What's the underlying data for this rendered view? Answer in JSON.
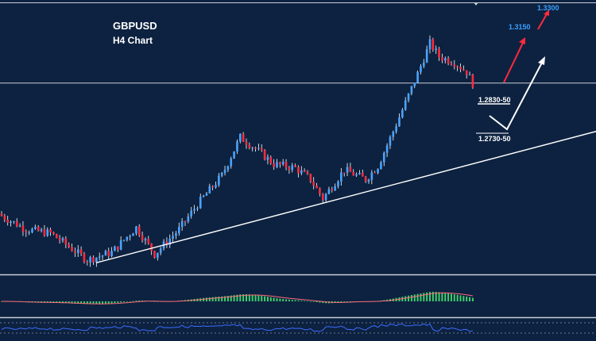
{
  "colors": {
    "background": "#0d2240",
    "bull": "#4aa3ff",
    "bear": "#ff2b3d",
    "trendline": "#ffffff",
    "separator": "#c9ced6",
    "macd_bar": "#3fcf6b",
    "macd_signal": "#ff6a7a",
    "osc_line": "#3d6cff",
    "label_blue": "#3aa0ff",
    "white": "#ffffff"
  },
  "chart_data": {
    "type": "candlestick",
    "title": "GBPUSD",
    "subtitle": "H4 Chart",
    "ylim": [
      1.266,
      1.335
    ],
    "path_points": [
      {
        "i": 0,
        "p": 1.28
      },
      {
        "i": 8,
        "p": 1.2765
      },
      {
        "i": 16,
        "p": 1.2755
      },
      {
        "i": 28,
        "p": 1.2685
      },
      {
        "i": 36,
        "p": 1.2705
      },
      {
        "i": 44,
        "p": 1.277
      },
      {
        "i": 50,
        "p": 1.27
      },
      {
        "i": 58,
        "p": 1.2765
      },
      {
        "i": 64,
        "p": 1.283
      },
      {
        "i": 72,
        "p": 1.2905
      },
      {
        "i": 78,
        "p": 1.3005
      },
      {
        "i": 83,
        "p": 1.2975
      },
      {
        "i": 89,
        "p": 1.2935
      },
      {
        "i": 96,
        "p": 1.2925
      },
      {
        "i": 101,
        "p": 1.2895
      },
      {
        "i": 105,
        "p": 1.2845
      },
      {
        "i": 112,
        "p": 1.292
      },
      {
        "i": 119,
        "p": 1.2895
      },
      {
        "i": 123,
        "p": 1.293
      },
      {
        "i": 128,
        "p": 1.302
      },
      {
        "i": 136,
        "p": 1.317
      },
      {
        "i": 140,
        "p": 1.325
      },
      {
        "i": 143,
        "p": 1.3215
      },
      {
        "i": 148,
        "p": 1.32
      },
      {
        "i": 152,
        "p": 1.3175
      },
      {
        "i": 154,
        "p": 1.3145
      }
    ],
    "trendline": {
      "from": {
        "i": 31,
        "p": 1.2678
      },
      "to_x_edge_price": 1.302
    },
    "horizontal_level": 1.3146,
    "annotations": {
      "level_1": "1.2830-50",
      "level_2": "1.2730-50",
      "target_1": "1.3150",
      "target_2": "1.3300"
    },
    "indicators": {
      "macd": {
        "type": "histogram"
      },
      "oscillator": {
        "type": "line"
      }
    }
  }
}
